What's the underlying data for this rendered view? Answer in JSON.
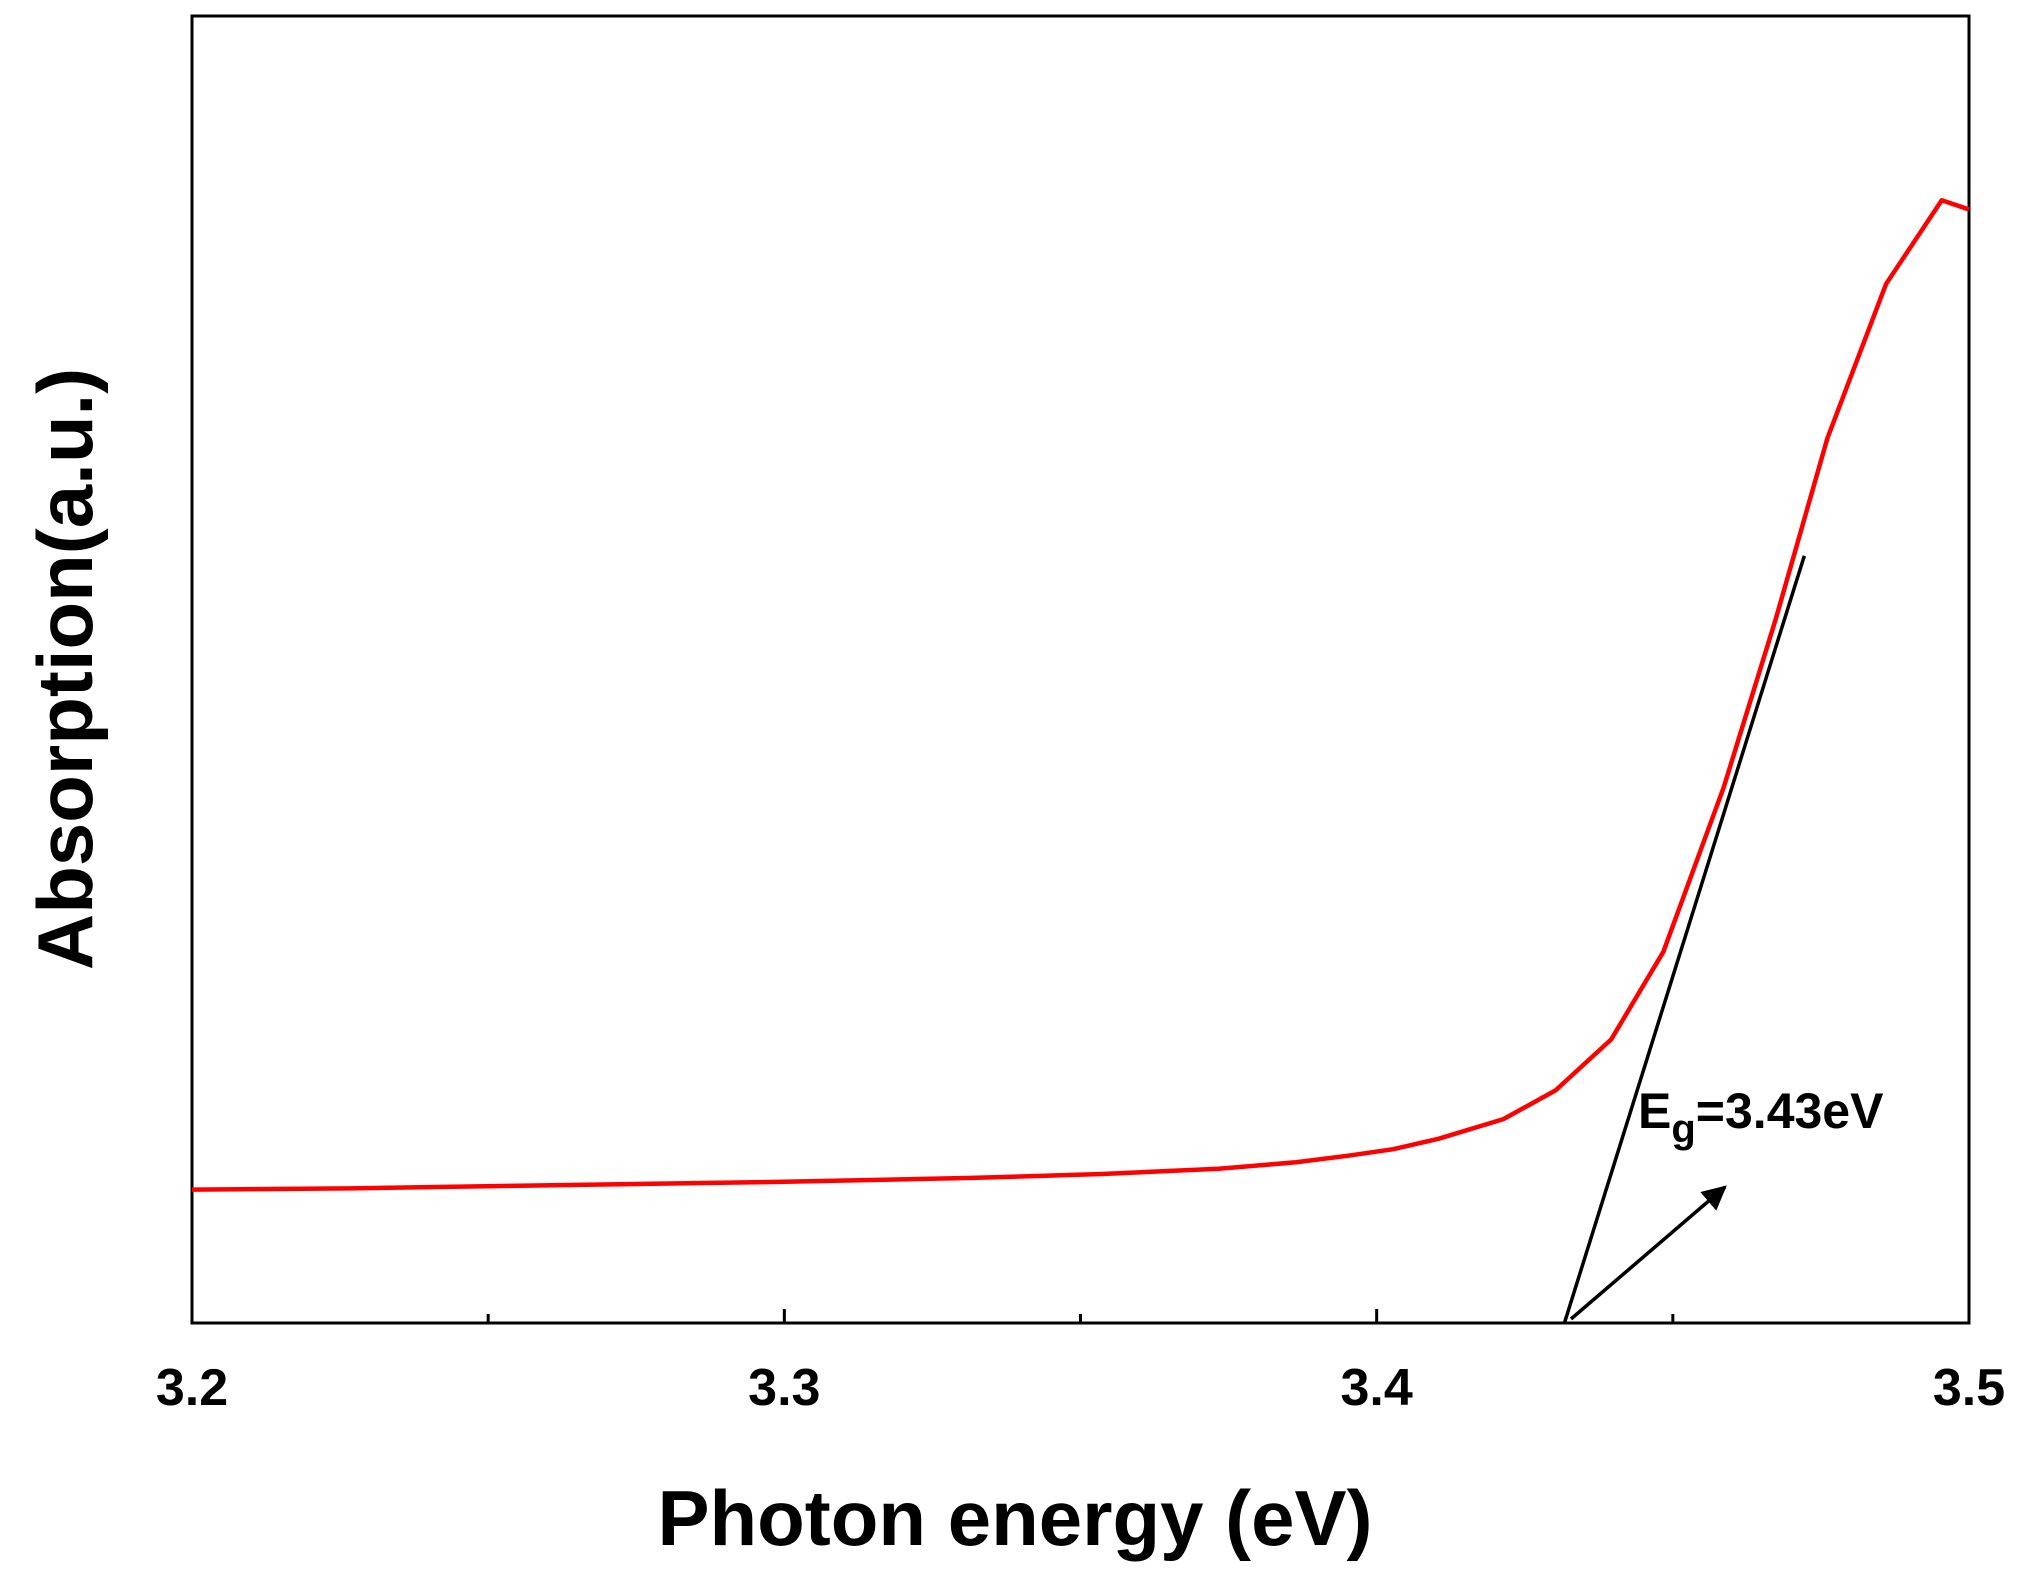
{
  "chart_data": {
    "type": "line",
    "x_label": "Photon energy (eV)",
    "y_label": "Absorption(a.u.)",
    "xlim": [
      3.2,
      3.5
    ],
    "xticks": [
      3.2,
      3.3,
      3.4,
      3.5
    ],
    "xminorticks": [
      3.25,
      3.35,
      3.45
    ],
    "ylim": [
      0,
      1
    ],
    "series": [
      {
        "color": "#ff0000",
        "x": [
          3.2,
          3.2267,
          3.2551,
          3.2989,
          3.3317,
          3.3536,
          3.3733,
          3.3864,
          3.3952,
          3.4028,
          3.4105,
          3.4214,
          3.4302,
          3.4396,
          3.4484,
          3.4586,
          3.4674,
          3.4761,
          3.486,
          3.4954,
          3.5
        ],
        "values": [
          0.102,
          0.103,
          0.105,
          0.108,
          0.111,
          0.114,
          0.118,
          0.123,
          0.128,
          0.133,
          0.141,
          0.156,
          0.178,
          0.217,
          0.284,
          0.41,
          0.539,
          0.677,
          0.795,
          0.859,
          0.852
        ]
      }
    ],
    "tangent": {
      "color": "#000000",
      "x": [
        3.4317,
        3.4722
      ],
      "values": [
        0,
        0.587
      ]
    },
    "annotation": {
      "main": "E",
      "sub": "g",
      "rest": "=3.43eV"
    }
  }
}
